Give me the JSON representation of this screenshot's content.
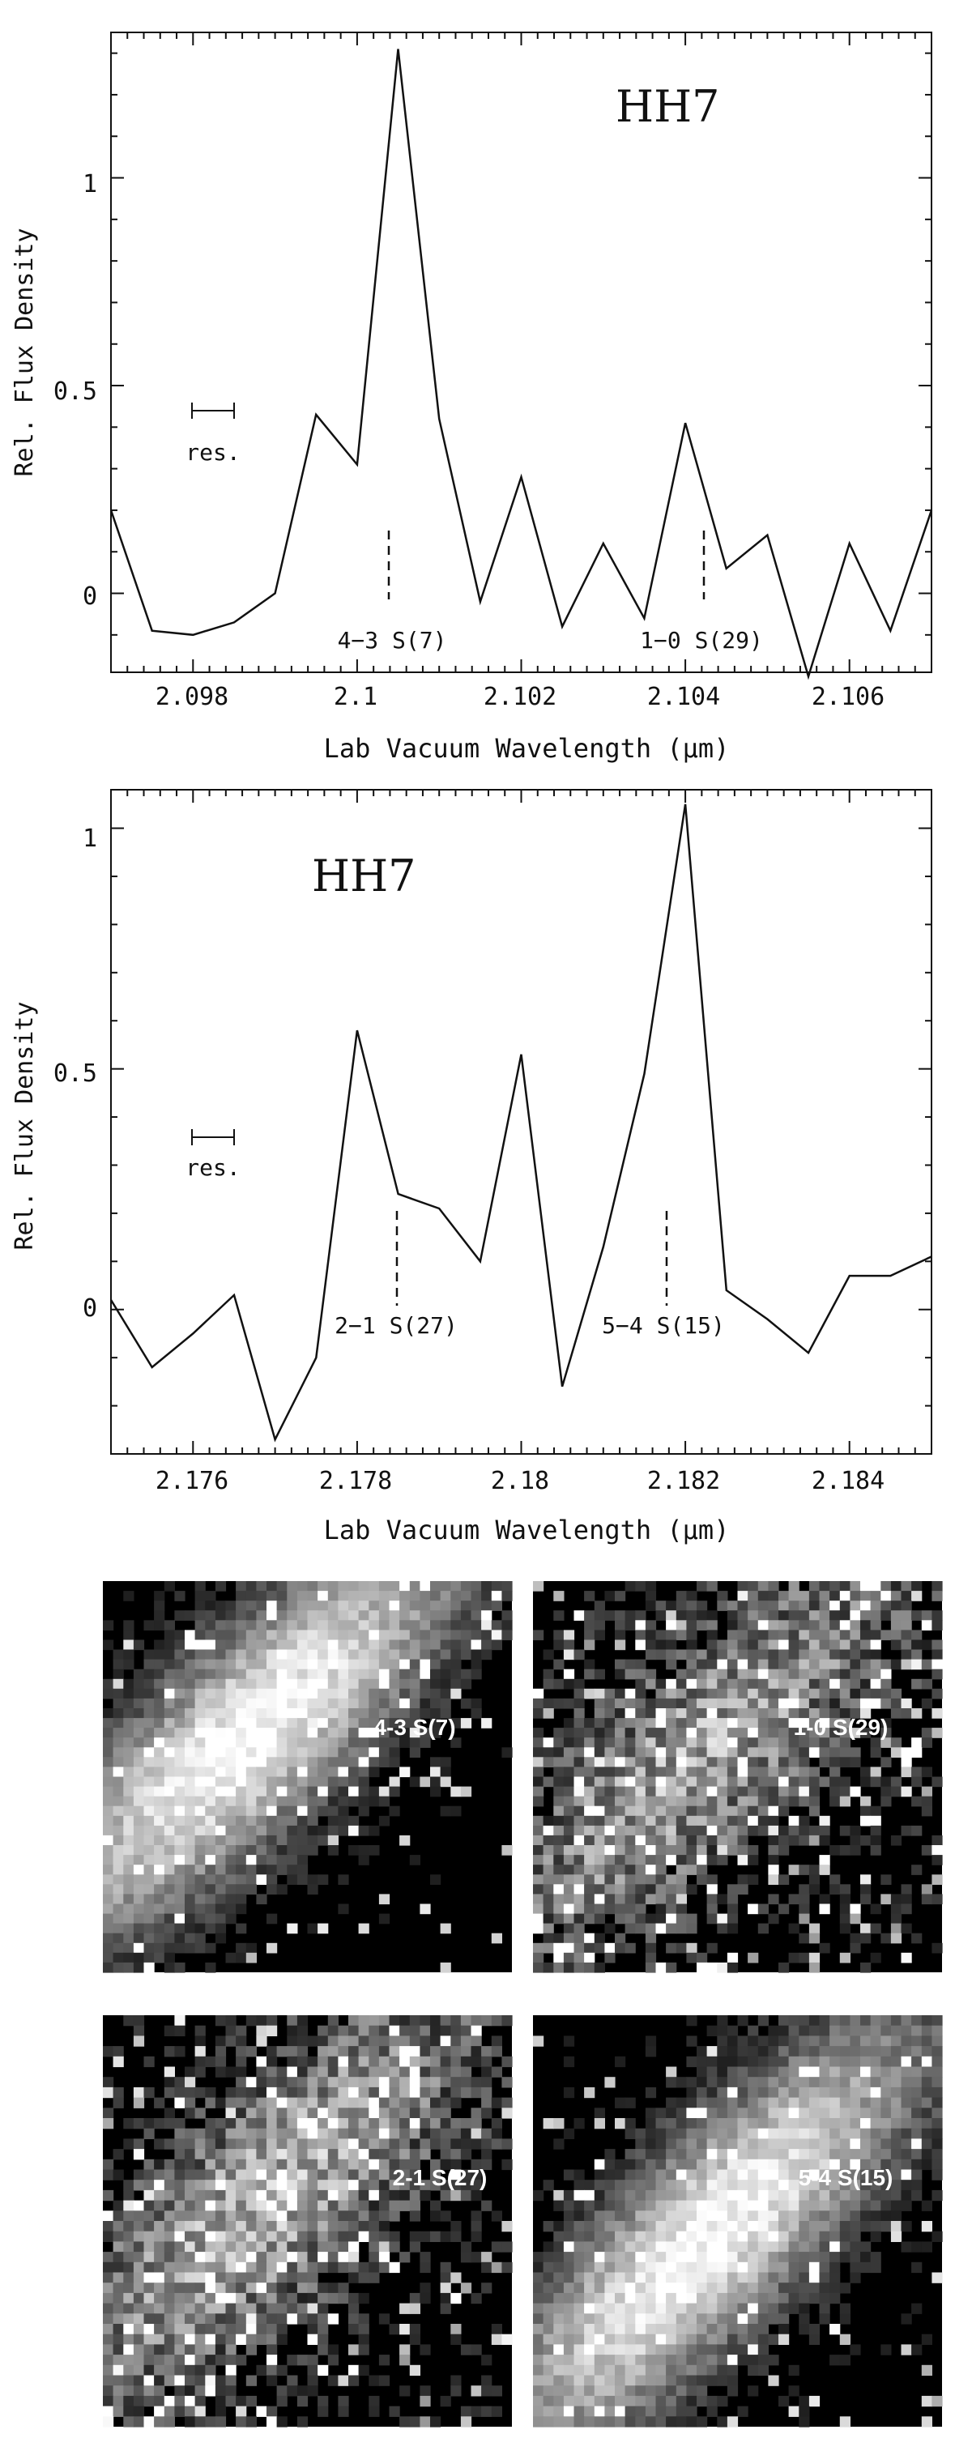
{
  "chart_data": [
    {
      "type": "line",
      "title": "HH7",
      "xlabel": "Lab Vacuum Wavelength (μm)",
      "ylabel": "Rel. Flux Density",
      "xlim": [
        2.097,
        2.107
      ],
      "ylim": [
        -0.19,
        1.35
      ],
      "x_ticks": [
        "2.098",
        "2.1",
        "2.102",
        "2.104",
        "2.106"
      ],
      "y_ticks": [
        "0",
        "0.5",
        "1"
      ],
      "resolution_label": "res.",
      "series": [
        {
          "name": "HH7 spectrum",
          "x": [
            2.097,
            2.0975,
            2.098,
            2.0985,
            2.099,
            2.0995,
            2.1,
            2.1005,
            2.101,
            2.1015,
            2.102,
            2.1025,
            2.103,
            2.1035,
            2.104,
            2.1045,
            2.105,
            2.1055,
            2.106,
            2.1065,
            2.107
          ],
          "values": [
            0.2,
            -0.09,
            -0.1,
            -0.07,
            0.0,
            0.43,
            0.31,
            1.31,
            0.42,
            -0.02,
            0.28,
            -0.08,
            0.12,
            -0.06,
            0.41,
            0.06,
            0.14,
            -0.2,
            0.12,
            -0.09,
            0.2
          ]
        }
      ],
      "annotations": [
        {
          "text": "4−3 S(7)",
          "x": 2.10045
        },
        {
          "text": "1−0 S(29)",
          "x": 2.10425
        }
      ]
    },
    {
      "type": "line",
      "title": "HH7",
      "xlabel": "Lab Vacuum Wavelength (μm)",
      "ylabel": "Rel. Flux Density",
      "xlim": [
        2.175,
        2.185
      ],
      "ylim": [
        -0.3,
        1.08
      ],
      "x_ticks": [
        "2.176",
        "2.178",
        "2.18",
        "2.182",
        "2.184"
      ],
      "y_ticks": [
        "0",
        "0.5",
        "1"
      ],
      "resolution_label": "res.",
      "series": [
        {
          "name": "HH7 spectrum",
          "x": [
            2.175,
            2.1755,
            2.176,
            2.1765,
            2.177,
            2.1775,
            2.178,
            2.1785,
            2.179,
            2.1795,
            2.18,
            2.1805,
            2.181,
            2.1815,
            2.182,
            2.1825,
            2.183,
            2.1835,
            2.184,
            2.1845,
            2.185
          ],
          "values": [
            0.02,
            -0.12,
            -0.05,
            0.03,
            -0.27,
            -0.1,
            0.58,
            0.24,
            0.21,
            0.1,
            0.53,
            -0.16,
            0.13,
            0.49,
            1.05,
            0.04,
            -0.02,
            -0.09,
            0.07,
            0.07,
            0.11
          ]
        }
      ],
      "annotations": [
        {
          "text": "2−1 S(27)",
          "x": 2.1785
        },
        {
          "text": "5−4 S(15)",
          "x": 2.1818
        }
      ]
    }
  ],
  "images": [
    {
      "label": "4-3 S(7)"
    },
    {
      "label": "1-0 S(29)"
    },
    {
      "label": "2-1 S(27)"
    },
    {
      "label": "5-4 S(15)"
    }
  ]
}
